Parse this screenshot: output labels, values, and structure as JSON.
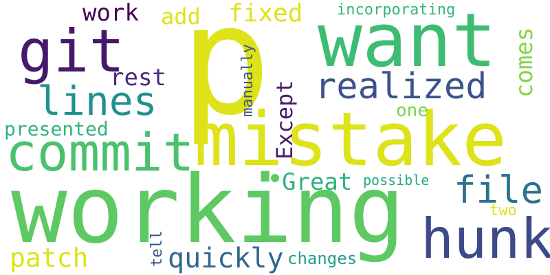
{
  "words": [
    {
      "text": "p",
      "color": "#dde318"
    },
    {
      "text": "want",
      "color": "#3fbc73"
    },
    {
      "text": "mistake",
      "color": "#dde318"
    },
    {
      "text": "working",
      "color": "#5ec962"
    },
    {
      "text": "commit",
      "color": "#4ac16d"
    },
    {
      "text": "git",
      "color": "#46186a"
    },
    {
      "text": "hunk",
      "color": "#3e4989"
    },
    {
      "text": "realized",
      "color": "#3b528b"
    },
    {
      "text": "lines",
      "color": "#21918c"
    },
    {
      "text": "file",
      "color": "#2c728e"
    },
    {
      "text": "presented",
      "color": "#2fb47c"
    },
    {
      "text": "Except",
      "color": "#481a6c"
    },
    {
      "text": "Great",
      "color": "#2fb47c"
    },
    {
      "text": "quickly",
      "color": "#31688e"
    },
    {
      "text": "patch",
      "color": "#dde318"
    },
    {
      "text": "rest",
      "color": "#482878"
    },
    {
      "text": "fixed",
      "color": "#dde318"
    },
    {
      "text": "work",
      "color": "#440154"
    },
    {
      "text": "add",
      "color": "#dde318"
    },
    {
      "text": "comes",
      "color": "#84d44b"
    },
    {
      "text": "one",
      "color": "#7ad151"
    },
    {
      "text": "incorporating",
      "color": "#35b779"
    },
    {
      "text": "manually",
      "color": "#3b528b"
    },
    {
      "text": "possible",
      "color": "#22a884"
    },
    {
      "text": "two",
      "color": "#dde318"
    },
    {
      "text": "tell",
      "color": "#3b528b"
    },
    {
      "text": "changes",
      "color": "#1fa187"
    }
  ]
}
